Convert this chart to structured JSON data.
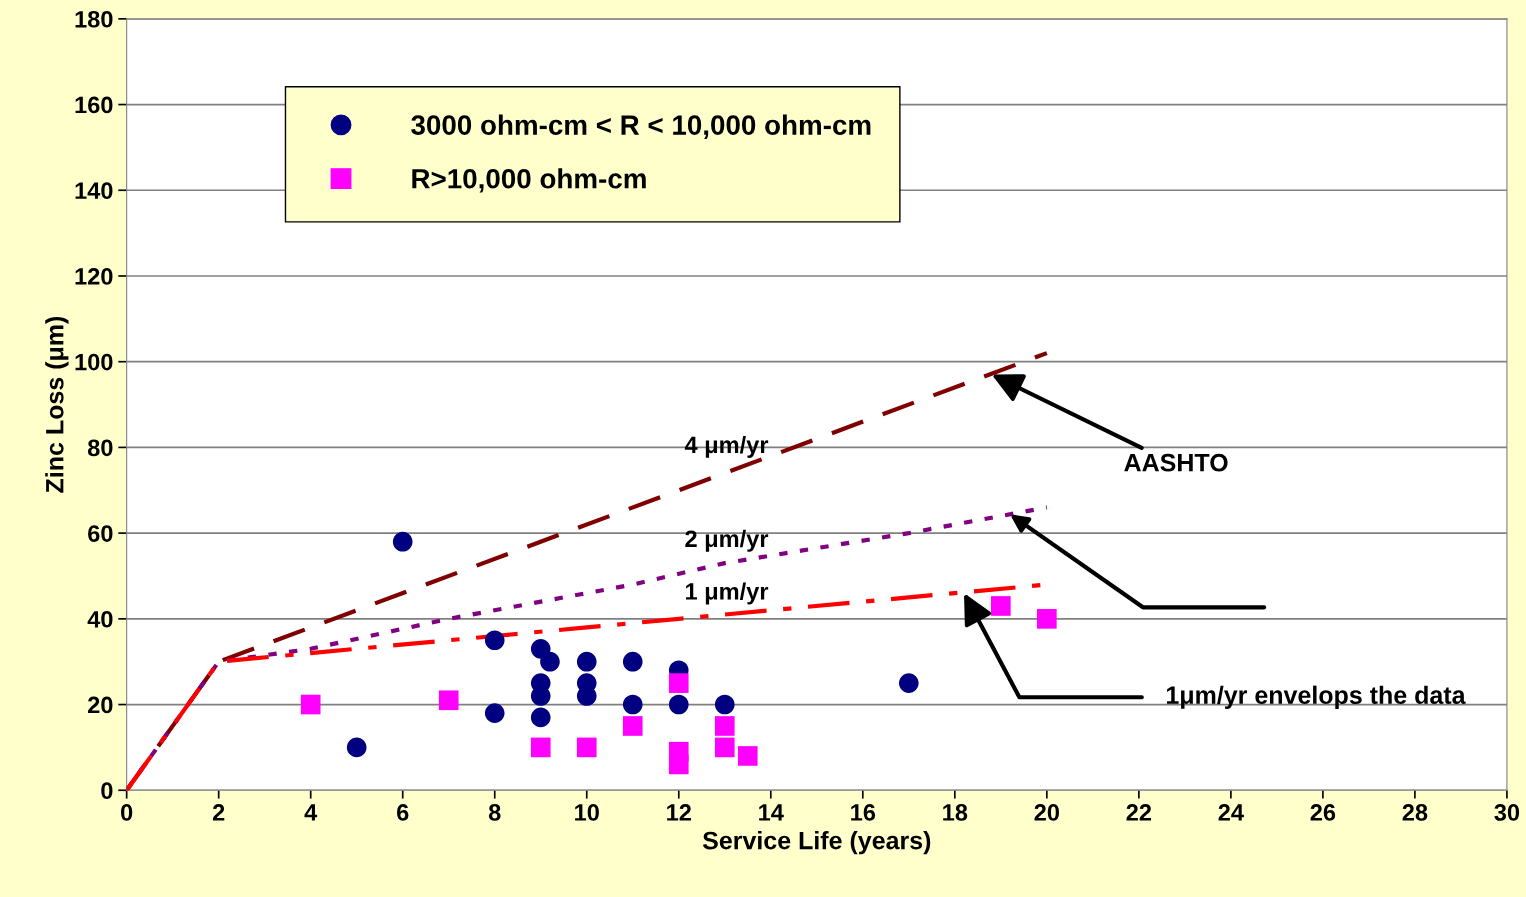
{
  "chart_data": {
    "type": "scatter",
    "xlabel": "Service Life (years)",
    "ylabel": "Zinc Loss (μm)",
    "xlim": [
      0,
      30
    ],
    "xticks": [
      0,
      2,
      4,
      6,
      8,
      10,
      12,
      14,
      16,
      18,
      20,
      22,
      24,
      26,
      28,
      30
    ],
    "ylim": [
      0,
      180
    ],
    "yticks": [
      0,
      20,
      40,
      60,
      80,
      100,
      120,
      140,
      160,
      180
    ],
    "grid": "y",
    "legend": "top left",
    "series": [
      {
        "name": "3000 ohm-cm < R < 10,000 ohm-cm",
        "marker": "circle",
        "color": "#000080",
        "x": [
          5,
          6,
          8,
          8,
          9,
          9,
          9,
          9,
          9.2,
          10,
          10,
          10,
          11,
          11,
          12,
          12,
          13,
          17
        ],
        "values": [
          10,
          58,
          35,
          18,
          33,
          25,
          22,
          17,
          30,
          30,
          25,
          22,
          30,
          20,
          28,
          20,
          20,
          25
        ]
      },
      {
        "name": "R>10,000 ohm-cm",
        "marker": "square",
        "color": "#ff00ff",
        "x": [
          4,
          7,
          9,
          10,
          11,
          12,
          12,
          12,
          13,
          13,
          13.5,
          19,
          20
        ],
        "values": [
          20,
          21,
          10,
          10,
          15,
          25,
          9,
          6,
          15,
          10,
          8,
          43,
          40
        ]
      },
      {
        "name": "4 μm/yr",
        "type": "line",
        "marker": "none",
        "line_style": "dashed",
        "color": "#800000",
        "x": [
          0,
          2,
          20
        ],
        "values": [
          0,
          30,
          102
        ]
      },
      {
        "name": "2 μm/yr",
        "type": "line",
        "marker": "none",
        "line_style": "dotted",
        "color": "#800080",
        "x": [
          0,
          2,
          4,
          7,
          10,
          11,
          13,
          17,
          20
        ],
        "values": [
          0,
          30,
          33,
          40,
          46,
          48,
          53,
          60,
          66
        ]
      },
      {
        "name": "1 μm/yr",
        "type": "line",
        "marker": "none",
        "line_style": "dashdot",
        "color": "#ff0000",
        "x": [
          0,
          2,
          4,
          7,
          10,
          12,
          13,
          17,
          20
        ],
        "values": [
          0,
          30,
          32,
          35,
          38,
          40,
          41,
          45,
          48
        ]
      }
    ],
    "annotations": [
      {
        "text": "AASHTO",
        "x": 18.8,
        "y": 97
      },
      {
        "text": "1μm/yr envelops the data",
        "x": 18.2,
        "y": 46
      }
    ]
  }
}
